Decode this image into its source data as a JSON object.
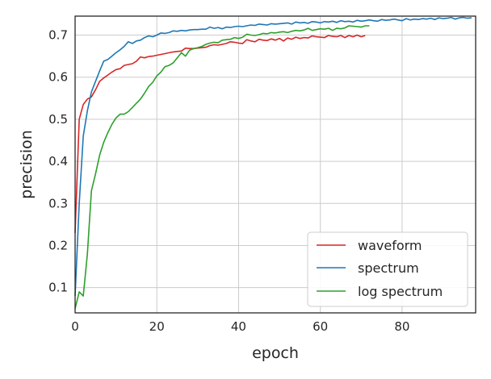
{
  "chart_data": {
    "type": "line",
    "title": "",
    "xlabel": "epoch",
    "ylabel": "precision",
    "xlim": [
      0,
      98
    ],
    "ylim": [
      0.04,
      0.745
    ],
    "xticks": [
      0,
      20,
      40,
      60,
      80
    ],
    "yticks": [
      0.1,
      0.2,
      0.3,
      0.4,
      0.5,
      0.6,
      0.7
    ],
    "grid": true,
    "legend": "bottom-right",
    "series": [
      {
        "name": "waveform",
        "color": "#d62728",
        "x": [
          0,
          1,
          2,
          3,
          4,
          5,
          6,
          7,
          8,
          9,
          10,
          11,
          12,
          13,
          14,
          15,
          16,
          17,
          18,
          19,
          20,
          21,
          22,
          23,
          24,
          25,
          26,
          27,
          28,
          29,
          30,
          31,
          32,
          33,
          34,
          35,
          36,
          37,
          38,
          39,
          40,
          41,
          42,
          43,
          44,
          45,
          46,
          47,
          48,
          49,
          50,
          51,
          52,
          53,
          54,
          55,
          56,
          57,
          58,
          59,
          60,
          61,
          62,
          63,
          64,
          65,
          66,
          67,
          68,
          69,
          70,
          71
        ],
        "y": [
          0.23,
          0.5,
          0.535,
          0.548,
          0.553,
          0.57,
          0.59,
          0.598,
          0.605,
          0.612,
          0.618,
          0.62,
          0.628,
          0.63,
          0.632,
          0.638,
          0.648,
          0.646,
          0.649,
          0.65,
          0.652,
          0.654,
          0.656,
          0.658,
          0.66,
          0.661,
          0.662,
          0.669,
          0.668,
          0.668,
          0.669,
          0.67,
          0.671,
          0.675,
          0.677,
          0.676,
          0.678,
          0.68,
          0.684,
          0.683,
          0.681,
          0.68,
          0.689,
          0.686,
          0.684,
          0.69,
          0.688,
          0.687,
          0.691,
          0.688,
          0.692,
          0.686,
          0.693,
          0.69,
          0.695,
          0.692,
          0.694,
          0.693,
          0.698,
          0.696,
          0.695,
          0.694,
          0.699,
          0.697,
          0.696,
          0.699,
          0.694,
          0.699,
          0.696,
          0.7,
          0.696,
          0.699
        ]
      },
      {
        "name": "spectrum",
        "color": "#1f77b4",
        "x": [
          0,
          1,
          2,
          3,
          4,
          5,
          6,
          7,
          8,
          9,
          10,
          11,
          12,
          13,
          14,
          15,
          16,
          17,
          18,
          19,
          20,
          21,
          22,
          23,
          24,
          25,
          26,
          27,
          28,
          29,
          30,
          31,
          32,
          33,
          34,
          35,
          36,
          37,
          38,
          39,
          40,
          41,
          42,
          43,
          44,
          45,
          46,
          47,
          48,
          49,
          50,
          51,
          52,
          53,
          54,
          55,
          56,
          57,
          58,
          59,
          60,
          61,
          62,
          63,
          64,
          65,
          66,
          67,
          68,
          69,
          70,
          71,
          72,
          73,
          74,
          75,
          76,
          77,
          78,
          79,
          80,
          81,
          82,
          83,
          84,
          85,
          86,
          87,
          88,
          89,
          90,
          91,
          92,
          93,
          94,
          95,
          96,
          97
        ],
        "y": [
          0.08,
          0.3,
          0.46,
          0.52,
          0.565,
          0.59,
          0.615,
          0.638,
          0.642,
          0.65,
          0.658,
          0.665,
          0.673,
          0.684,
          0.68,
          0.686,
          0.688,
          0.694,
          0.698,
          0.696,
          0.7,
          0.705,
          0.704,
          0.706,
          0.71,
          0.709,
          0.711,
          0.71,
          0.712,
          0.713,
          0.713,
          0.714,
          0.714,
          0.719,
          0.716,
          0.718,
          0.715,
          0.719,
          0.718,
          0.72,
          0.721,
          0.72,
          0.722,
          0.724,
          0.723,
          0.726,
          0.725,
          0.724,
          0.727,
          0.726,
          0.727,
          0.728,
          0.729,
          0.726,
          0.731,
          0.729,
          0.73,
          0.728,
          0.732,
          0.731,
          0.729,
          0.732,
          0.731,
          0.733,
          0.73,
          0.734,
          0.732,
          0.733,
          0.731,
          0.735,
          0.733,
          0.734,
          0.736,
          0.734,
          0.733,
          0.737,
          0.735,
          0.736,
          0.738,
          0.736,
          0.734,
          0.739,
          0.736,
          0.738,
          0.737,
          0.739,
          0.738,
          0.74,
          0.737,
          0.741,
          0.739,
          0.74,
          0.742,
          0.738,
          0.741,
          0.742,
          0.74,
          0.741
        ]
      },
      {
        "name": "log spectrum",
        "color": "#2ca02c",
        "x": [
          0,
          1,
          2,
          3,
          4,
          5,
          6,
          7,
          8,
          9,
          10,
          11,
          12,
          13,
          14,
          15,
          16,
          17,
          18,
          19,
          20,
          21,
          22,
          23,
          24,
          25,
          26,
          27,
          28,
          29,
          30,
          31,
          32,
          33,
          34,
          35,
          36,
          37,
          38,
          39,
          40,
          41,
          42,
          43,
          44,
          45,
          46,
          47,
          48,
          49,
          50,
          51,
          52,
          53,
          54,
          55,
          56,
          57,
          58,
          59,
          60,
          61,
          62,
          63,
          64,
          65,
          66,
          67,
          68,
          69,
          70,
          71,
          72
        ],
        "y": [
          0.05,
          0.09,
          0.08,
          0.18,
          0.33,
          0.37,
          0.415,
          0.445,
          0.468,
          0.488,
          0.503,
          0.512,
          0.512,
          0.518,
          0.528,
          0.538,
          0.548,
          0.562,
          0.578,
          0.588,
          0.603,
          0.612,
          0.625,
          0.628,
          0.634,
          0.646,
          0.658,
          0.65,
          0.664,
          0.668,
          0.67,
          0.673,
          0.678,
          0.681,
          0.683,
          0.682,
          0.688,
          0.689,
          0.69,
          0.694,
          0.692,
          0.695,
          0.702,
          0.7,
          0.699,
          0.701,
          0.704,
          0.703,
          0.706,
          0.705,
          0.707,
          0.708,
          0.706,
          0.709,
          0.711,
          0.71,
          0.712,
          0.716,
          0.711,
          0.713,
          0.715,
          0.714,
          0.716,
          0.711,
          0.716,
          0.715,
          0.717,
          0.722,
          0.721,
          0.72,
          0.719,
          0.722,
          0.722
        ]
      }
    ]
  }
}
